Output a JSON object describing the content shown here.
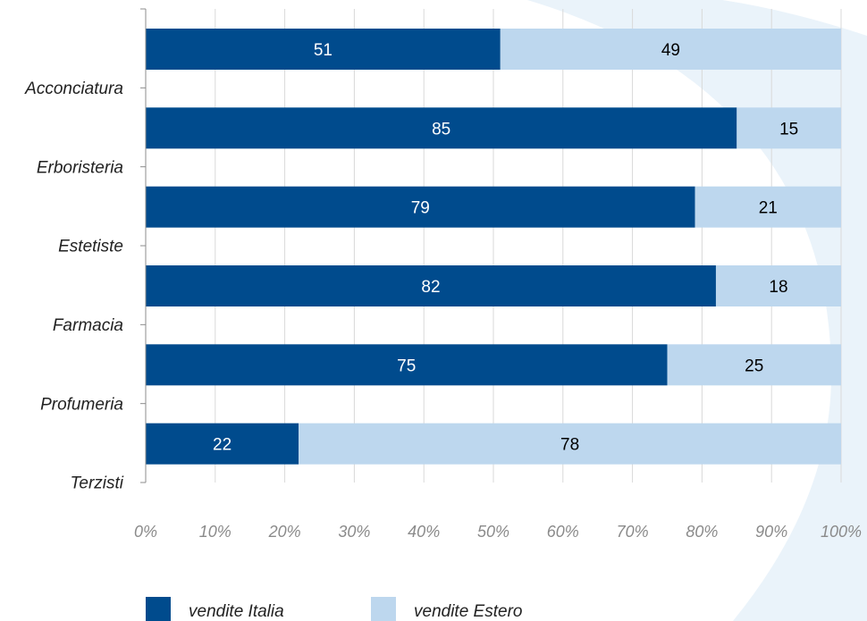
{
  "chart_data": {
    "type": "bar",
    "orientation": "horizontal",
    "stacked": true,
    "categories": [
      "Acconciatura",
      "Erboristeria",
      "Estetiste",
      "Farmacia",
      "Profumeria",
      "Terzisti"
    ],
    "series": [
      {
        "name": "vendite Italia",
        "values": [
          51,
          85,
          79,
          82,
          75,
          22
        ],
        "color": "#004B8D",
        "label_color": "#ffffff"
      },
      {
        "name": "vendite Estero",
        "values": [
          49,
          15,
          21,
          18,
          25,
          78
        ],
        "color": "#BDD7EE",
        "label_color": "#000000"
      }
    ],
    "x_ticks": [
      "0%",
      "10%",
      "20%",
      "30%",
      "40%",
      "50%",
      "60%",
      "70%",
      "80%",
      "90%",
      "100%"
    ],
    "xlim": [
      0,
      100
    ],
    "grid": true,
    "legend_position": "bottom"
  },
  "colors": {
    "grid": "#d9d9d9",
    "axis": "#8c8c8c",
    "watermark": "#eaf3fa"
  }
}
